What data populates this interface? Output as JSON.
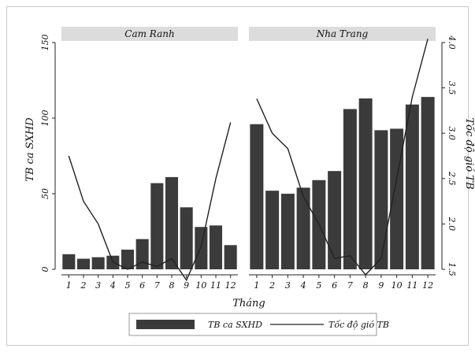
{
  "chart_data": {
    "type": "bar",
    "ylabel_left": "TB ca SXHD",
    "ylabel_right": "Tốc độ gió TB",
    "xlabel": "Tháng",
    "categories": [
      "1",
      "2",
      "3",
      "4",
      "5",
      "6",
      "7",
      "8",
      "9",
      "10",
      "11",
      "12"
    ],
    "left_yticks": [
      "0",
      "50",
      "100",
      "150"
    ],
    "right_yticks": [
      "1.5",
      "2.0",
      "2.5",
      "3.0",
      "3.5",
      "4.0"
    ],
    "ylim_left": [
      0,
      150
    ],
    "ylim_right": [
      1.5,
      4.0
    ],
    "legend": {
      "placement": "bottom",
      "entries": [
        "TB ca SXHD",
        "Tốc độ gió TB"
      ]
    },
    "panels": [
      {
        "title": "Cam Ranh",
        "series": [
          {
            "name": "TB ca SXHD",
            "type": "bar",
            "values": [
              10,
              7,
              8,
              9,
              13,
              20,
              57,
              61,
              41,
              28,
              29,
              16
            ]
          },
          {
            "name": "Tốc độ gió TB",
            "type": "line",
            "values": [
              2.75,
              2.25,
              2.0,
              1.58,
              1.5,
              1.58,
              1.53,
              1.62,
              1.38,
              1.75,
              2.5,
              3.12
            ]
          }
        ]
      },
      {
        "title": "Nha Trang",
        "series": [
          {
            "name": "TB ca SXHD",
            "type": "bar",
            "values": [
              96,
              52,
              50,
              54,
              59,
              65,
              106,
              113,
              92,
              93,
              109,
              114
            ]
          },
          {
            "name": "Tốc độ gió TB",
            "type": "line",
            "values": [
              3.38,
              3.0,
              2.83,
              2.3,
              2.0,
              1.62,
              1.65,
              1.44,
              1.62,
              2.5,
              3.4,
              4.04
            ]
          }
        ]
      }
    ],
    "colors": {
      "bar": "#3b3b3b",
      "line": "#222222",
      "strip": "#dcdcdc"
    }
  }
}
